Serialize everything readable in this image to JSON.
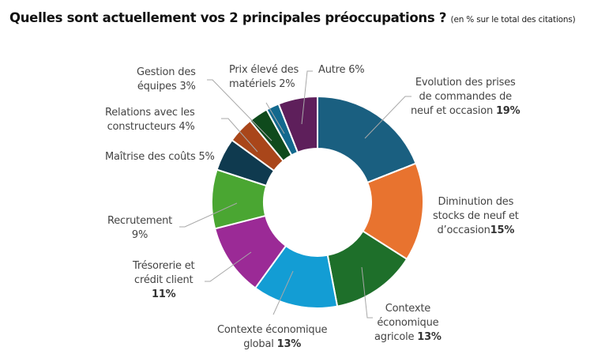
{
  "title": "Quelles sont actuellement vos 2 principales préoccupations ?",
  "subtitle": "(en % sur le total des citations)",
  "chart_data": {
    "type": "pie",
    "variant": "donut",
    "title": "Quelles sont actuellement vos 2 principales préoccupations ?",
    "subtitle": "(en % sur le total des citations)",
    "unit": "%",
    "start_angle": "12 o'clock, clockwise",
    "categories": [
      "Evolution des prises de commandes de neuf et occasion",
      "Diminution des stocks de neuf et d'occasion",
      "Contexte économique agricole",
      "Contexte économique global",
      "Trésorerie et crédit client",
      "Recrutement",
      "Maîtrise des coûts",
      "Relations avec les constructeurs",
      "Gestion des équipes",
      "Prix élevé des matériels",
      "Autre"
    ],
    "values": [
      19,
      15,
      13,
      13,
      11,
      9,
      5,
      4,
      3,
      2,
      6
    ],
    "colors": [
      "#1a5f80",
      "#e8732f",
      "#1e6f2a",
      "#139dd4",
      "#9b2a96",
      "#4aa632",
      "#0f3a4f",
      "#a9461a",
      "#0f4a1c",
      "#13698e",
      "#5e1f5b"
    ]
  },
  "labels": {
    "evolution": {
      "line1": "Evolution des prises",
      "line2": "de commandes de",
      "line3": "neuf et occasion ",
      "value": "19%"
    },
    "diminution": {
      "line1": "Diminution des",
      "line2": "stocks de neuf et",
      "line3": "d’occasion",
      "value": "15%"
    },
    "agricole": {
      "line1": "Contexte",
      "line2": "économique",
      "line3": "agricole ",
      "value": "13%"
    },
    "global": {
      "line1": "Contexte économique",
      "line2": "global ",
      "value": "13%"
    },
    "tresorerie": {
      "line1": "Trésorerie et",
      "line2": "crédit client",
      "value": "11%"
    },
    "recrutement": {
      "line1": "Recrutement",
      "value": "9%"
    },
    "maitrise": {
      "text": "Maîtrise des coûts 5%"
    },
    "relations": {
      "line1": "Relations avec les",
      "line2": "constructeurs 4%"
    },
    "gestion": {
      "line1": "Gestion des",
      "line2": "équipes 3%"
    },
    "prix": {
      "line1": "Prix élevé des",
      "line2": "matériels  2%"
    },
    "autre": {
      "text": "Autre 6%"
    }
  }
}
